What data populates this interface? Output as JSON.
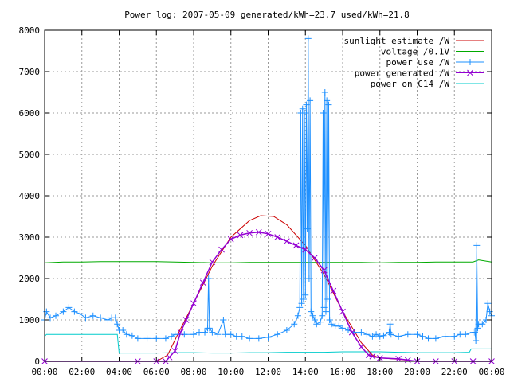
{
  "chart_data": {
    "type": "line",
    "title": "Power log: 2007-05-09 generated/kWh=23.7 used/kWh=21.8",
    "xlabel": "",
    "ylabel": "",
    "xlim": [
      0,
      24
    ],
    "ylim": [
      0,
      8000
    ],
    "grid": true,
    "legend_position": "top-right",
    "x_ticks": [
      "00:00",
      "02:00",
      "04:00",
      "06:00",
      "08:00",
      "10:00",
      "12:00",
      "14:00",
      "16:00",
      "18:00",
      "20:00",
      "22:00",
      "00:00"
    ],
    "y_ticks": [
      "0",
      "1000",
      "2000",
      "3000",
      "4000",
      "5000",
      "6000",
      "7000",
      "8000"
    ],
    "series": [
      {
        "name": "sunlight estimate /W",
        "color": "#cc0000",
        "marker": "none",
        "points": [
          [
            0,
            0
          ],
          [
            6,
            0
          ],
          [
            6.6,
            150
          ],
          [
            7.2,
            700
          ],
          [
            8,
            1400
          ],
          [
            9,
            2300
          ],
          [
            10,
            3000
          ],
          [
            11,
            3400
          ],
          [
            11.6,
            3520
          ],
          [
            12.3,
            3500
          ],
          [
            13,
            3300
          ],
          [
            14,
            2800
          ],
          [
            15,
            2100
          ],
          [
            16,
            1200
          ],
          [
            17,
            450
          ],
          [
            17.6,
            150
          ],
          [
            18,
            80
          ],
          [
            19,
            50
          ],
          [
            20,
            0
          ],
          [
            24,
            0
          ]
        ]
      },
      {
        "name": "voltage /0.1V",
        "color": "#00aa00",
        "marker": "none",
        "points": [
          [
            0,
            2380
          ],
          [
            1,
            2400
          ],
          [
            2,
            2400
          ],
          [
            3,
            2410
          ],
          [
            4,
            2410
          ],
          [
            5,
            2410
          ],
          [
            6,
            2410
          ],
          [
            7,
            2400
          ],
          [
            8,
            2390
          ],
          [
            9,
            2380
          ],
          [
            10,
            2380
          ],
          [
            11,
            2390
          ],
          [
            12,
            2390
          ],
          [
            13,
            2390
          ],
          [
            14,
            2390
          ],
          [
            15,
            2390
          ],
          [
            16,
            2390
          ],
          [
            17,
            2390
          ],
          [
            18,
            2380
          ],
          [
            19,
            2390
          ],
          [
            20,
            2390
          ],
          [
            21,
            2400
          ],
          [
            22,
            2400
          ],
          [
            23,
            2400
          ],
          [
            23.3,
            2450
          ],
          [
            24,
            2400
          ]
        ]
      },
      {
        "name": "power use /W",
        "color": "#1e90ff",
        "marker": "plus",
        "points": [
          [
            0,
            1000
          ],
          [
            0.1,
            1200
          ],
          [
            0.3,
            1050
          ],
          [
            0.6,
            1100
          ],
          [
            1,
            1200
          ],
          [
            1.3,
            1300
          ],
          [
            1.6,
            1200
          ],
          [
            1.9,
            1150
          ],
          [
            2.2,
            1050
          ],
          [
            2.6,
            1100
          ],
          [
            3,
            1050
          ],
          [
            3.4,
            1000
          ],
          [
            3.6,
            1050
          ],
          [
            3.8,
            1050
          ],
          [
            3.9,
            900
          ],
          [
            4,
            750
          ],
          [
            4.2,
            750
          ],
          [
            4.4,
            650
          ],
          [
            4.7,
            620
          ],
          [
            5,
            550
          ],
          [
            5.5,
            550
          ],
          [
            6,
            550
          ],
          [
            6.5,
            550
          ],
          [
            6.8,
            600
          ],
          [
            7,
            650
          ],
          [
            7.5,
            650
          ],
          [
            8,
            650
          ],
          [
            8.3,
            700
          ],
          [
            8.6,
            700
          ],
          [
            8.75,
            800
          ],
          [
            8.8,
            2000
          ],
          [
            8.85,
            800
          ],
          [
            9,
            700
          ],
          [
            9.3,
            650
          ],
          [
            9.6,
            1000
          ],
          [
            9.7,
            650
          ],
          [
            10,
            650
          ],
          [
            10.3,
            600
          ],
          [
            10.6,
            600
          ],
          [
            11,
            550
          ],
          [
            11.5,
            550
          ],
          [
            12,
            580
          ],
          [
            12.5,
            650
          ],
          [
            13,
            750
          ],
          [
            13.4,
            900
          ],
          [
            13.6,
            1100
          ],
          [
            13.7,
            1300
          ],
          [
            13.75,
            6000
          ],
          [
            13.8,
            1400
          ],
          [
            13.85,
            6100
          ],
          [
            13.9,
            1500
          ],
          [
            13.95,
            6000
          ],
          [
            14,
            1600
          ],
          [
            14.05,
            6200
          ],
          [
            14.1,
            3200
          ],
          [
            14.15,
            7800
          ],
          [
            14.2,
            2000
          ],
          [
            14.25,
            6300
          ],
          [
            14.3,
            1200
          ],
          [
            14.4,
            1100
          ],
          [
            14.5,
            1000
          ],
          [
            14.6,
            900
          ],
          [
            14.8,
            950
          ],
          [
            14.9,
            1100
          ],
          [
            14.95,
            6000
          ],
          [
            15,
            1300
          ],
          [
            15.05,
            6500
          ],
          [
            15.1,
            1200
          ],
          [
            15.15,
            6300
          ],
          [
            15.2,
            1500
          ],
          [
            15.25,
            6200
          ],
          [
            15.3,
            1000
          ],
          [
            15.4,
            900
          ],
          [
            15.6,
            850
          ],
          [
            15.8,
            850
          ],
          [
            16,
            800
          ],
          [
            16.3,
            750
          ],
          [
            16.6,
            700
          ],
          [
            17,
            700
          ],
          [
            17.3,
            650
          ],
          [
            17.6,
            600
          ],
          [
            17.8,
            650
          ],
          [
            18,
            600
          ],
          [
            18.2,
            620
          ],
          [
            18.5,
            700
          ],
          [
            18.55,
            900
          ],
          [
            18.6,
            650
          ],
          [
            19,
            600
          ],
          [
            19.5,
            650
          ],
          [
            20,
            650
          ],
          [
            20.3,
            600
          ],
          [
            20.6,
            550
          ],
          [
            21,
            550
          ],
          [
            21.5,
            600
          ],
          [
            22,
            600
          ],
          [
            22.3,
            650
          ],
          [
            22.6,
            650
          ],
          [
            23,
            700
          ],
          [
            23.1,
            700
          ],
          [
            23.15,
            500
          ],
          [
            23.2,
            2800
          ],
          [
            23.25,
            800
          ],
          [
            23.3,
            900
          ],
          [
            23.5,
            900
          ],
          [
            23.7,
            1000
          ],
          [
            23.8,
            1400
          ],
          [
            23.9,
            1200
          ],
          [
            24,
            1100
          ]
        ]
      },
      {
        "name": "power generated /W",
        "color": "#9400d3",
        "marker": "cross",
        "points": [
          [
            0,
            0
          ],
          [
            5,
            0
          ],
          [
            6,
            0
          ],
          [
            6.5,
            0
          ],
          [
            6.7,
            100
          ],
          [
            7,
            250
          ],
          [
            7.3,
            700
          ],
          [
            7.6,
            1000
          ],
          [
            8,
            1400
          ],
          [
            8.5,
            1900
          ],
          [
            9,
            2400
          ],
          [
            9.5,
            2700
          ],
          [
            10,
            2950
          ],
          [
            10.5,
            3050
          ],
          [
            11,
            3100
          ],
          [
            11.5,
            3120
          ],
          [
            12,
            3080
          ],
          [
            12.5,
            3000
          ],
          [
            13,
            2900
          ],
          [
            13.5,
            2800
          ],
          [
            14,
            2700
          ],
          [
            14.5,
            2500
          ],
          [
            15,
            2200
          ],
          [
            15.5,
            1700
          ],
          [
            16,
            1200
          ],
          [
            16.5,
            700
          ],
          [
            17,
            350
          ],
          [
            17.4,
            150
          ],
          [
            17.6,
            120
          ],
          [
            18,
            80
          ],
          [
            19,
            60
          ],
          [
            19.5,
            30
          ],
          [
            20,
            0
          ],
          [
            21,
            0
          ],
          [
            22,
            0
          ],
          [
            23,
            0
          ],
          [
            24,
            0
          ]
        ]
      },
      {
        "name": "power on C14 /W",
        "color": "#00cccc",
        "marker": "none",
        "points": [
          [
            0,
            600
          ],
          [
            0.1,
            650
          ],
          [
            1,
            650
          ],
          [
            2,
            650
          ],
          [
            3,
            650
          ],
          [
            3.9,
            650
          ],
          [
            4,
            200
          ],
          [
            5,
            200
          ],
          [
            6,
            200
          ],
          [
            7,
            210
          ],
          [
            8,
            210
          ],
          [
            9,
            200
          ],
          [
            10,
            200
          ],
          [
            11,
            210
          ],
          [
            12,
            210
          ],
          [
            13,
            220
          ],
          [
            14,
            220
          ],
          [
            15,
            220
          ],
          [
            16,
            230
          ],
          [
            17,
            230
          ],
          [
            18,
            230
          ],
          [
            19,
            220
          ],
          [
            20,
            210
          ],
          [
            21,
            210
          ],
          [
            22,
            210
          ],
          [
            22.8,
            220
          ],
          [
            22.9,
            300
          ],
          [
            23.5,
            300
          ],
          [
            24,
            300
          ]
        ]
      }
    ]
  }
}
